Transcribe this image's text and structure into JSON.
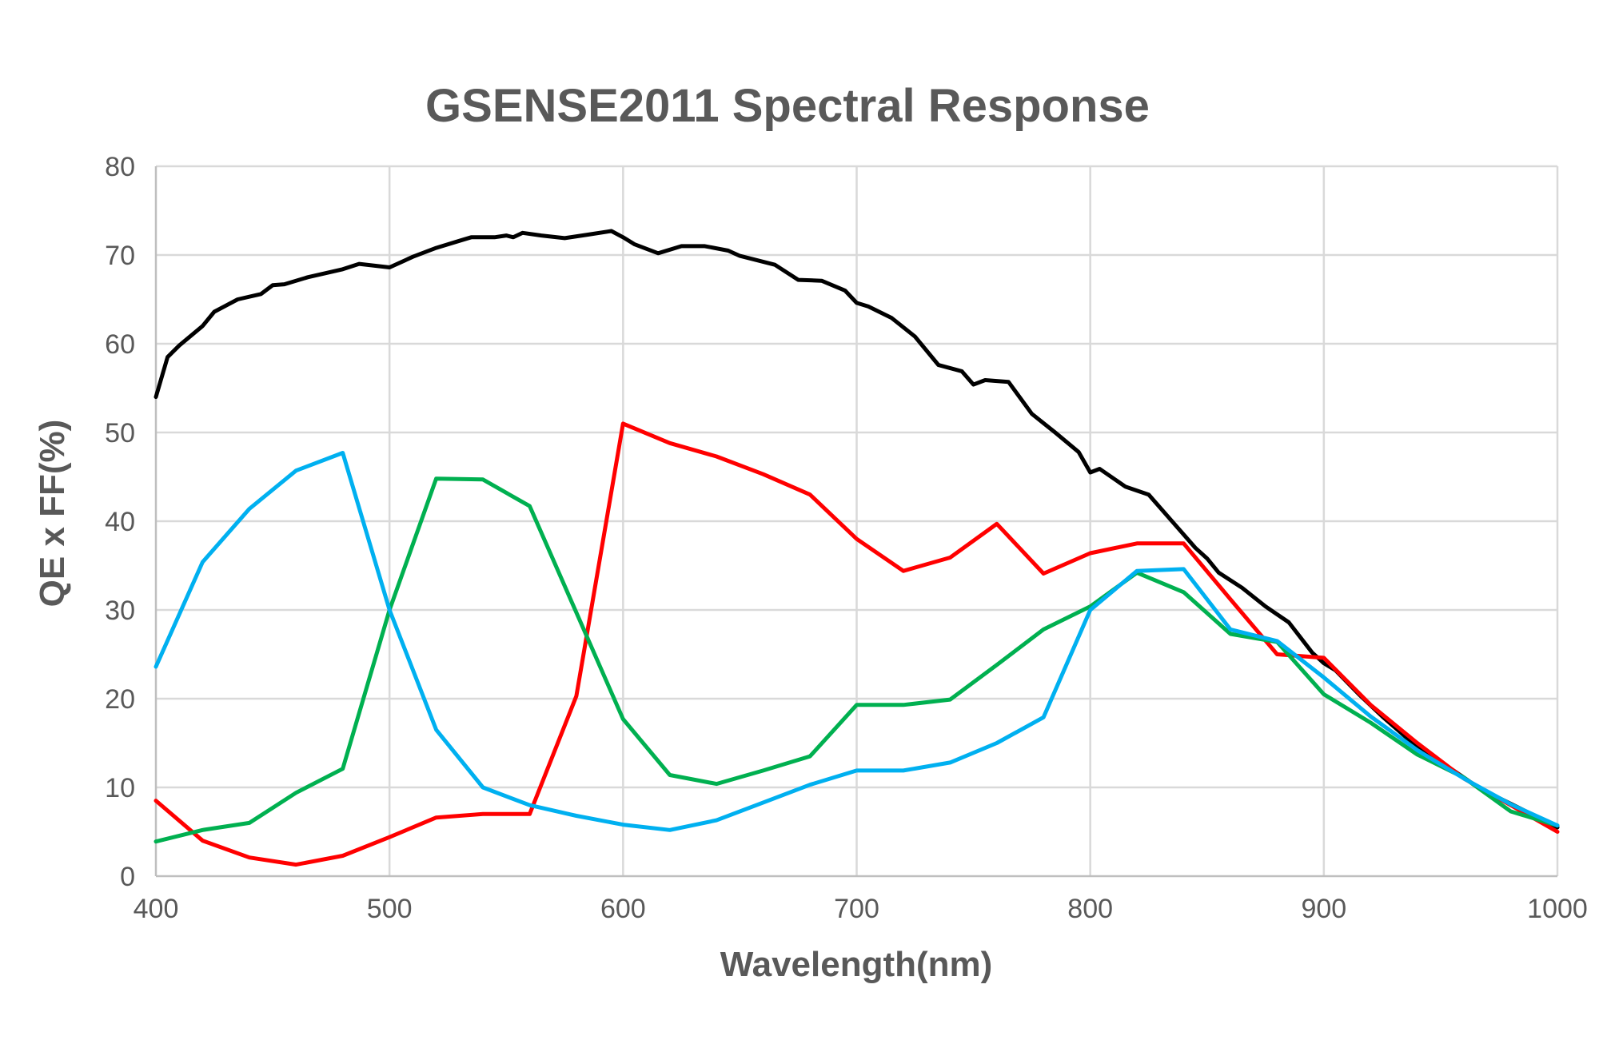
{
  "chart_data": {
    "type": "line",
    "title": "GSENSE2011 Spectral Response",
    "xlabel": "Wavelength(nm)",
    "ylabel": "QE x FF(%)",
    "xlim": [
      400,
      1000
    ],
    "ylim": [
      0,
      80
    ],
    "xticks": [
      400,
      500,
      600,
      700,
      800,
      900,
      1000
    ],
    "yticks": [
      0,
      10,
      20,
      30,
      40,
      50,
      60,
      70,
      80
    ],
    "grid": true,
    "series": [
      {
        "color": "#000000",
        "points": [
          [
            400,
            54
          ],
          [
            405,
            58.5
          ],
          [
            410,
            59.8
          ],
          [
            420,
            62
          ],
          [
            425,
            63.6
          ],
          [
            435,
            65
          ],
          [
            445,
            65.6
          ],
          [
            450,
            66.6
          ],
          [
            455,
            66.7
          ],
          [
            465,
            67.5
          ],
          [
            480,
            68.4
          ],
          [
            487,
            69
          ],
          [
            500,
            68.6
          ],
          [
            510,
            69.8
          ],
          [
            520,
            70.8
          ],
          [
            530,
            71.6
          ],
          [
            535,
            72
          ],
          [
            545,
            72
          ],
          [
            550,
            72.2
          ],
          [
            553,
            72
          ],
          [
            557,
            72.5
          ],
          [
            565,
            72.2
          ],
          [
            575,
            71.9
          ],
          [
            585,
            72.3
          ],
          [
            595,
            72.7
          ],
          [
            600,
            72
          ],
          [
            605,
            71.2
          ],
          [
            615,
            70.2
          ],
          [
            625,
            71
          ],
          [
            635,
            71
          ],
          [
            645,
            70.5
          ],
          [
            650,
            69.9
          ],
          [
            665,
            68.9
          ],
          [
            675,
            67.2
          ],
          [
            685,
            67.1
          ],
          [
            695,
            66
          ],
          [
            700,
            64.6
          ],
          [
            705,
            64.2
          ],
          [
            715,
            62.9
          ],
          [
            725,
            60.8
          ],
          [
            735,
            57.6
          ],
          [
            745,
            56.9
          ],
          [
            750,
            55.4
          ],
          [
            755,
            55.9
          ],
          [
            765,
            55.7
          ],
          [
            775,
            52.1
          ],
          [
            785,
            50
          ],
          [
            795,
            47.8
          ],
          [
            800,
            45.5
          ],
          [
            804,
            45.9
          ],
          [
            815,
            43.9
          ],
          [
            825,
            43
          ],
          [
            835,
            40
          ],
          [
            845,
            37
          ],
          [
            850,
            35.8
          ],
          [
            855,
            34.2
          ],
          [
            865,
            32.5
          ],
          [
            875,
            30.4
          ],
          [
            885,
            28.6
          ],
          [
            895,
            25.2
          ],
          [
            900,
            24
          ],
          [
            905,
            23.2
          ],
          [
            915,
            20.5
          ],
          [
            925,
            18
          ],
          [
            935,
            15.7
          ],
          [
            945,
            13.5
          ],
          [
            955,
            12
          ],
          [
            965,
            10.2
          ],
          [
            975,
            8.8
          ],
          [
            985,
            7.5
          ],
          [
            995,
            6.2
          ],
          [
            1000,
            5.5
          ]
        ]
      },
      {
        "color": "#ff0000",
        "points": [
          [
            400,
            8.5
          ],
          [
            420,
            4
          ],
          [
            440,
            2.1
          ],
          [
            460,
            1.3
          ],
          [
            480,
            2.3
          ],
          [
            500,
            4.4
          ],
          [
            520,
            6.6
          ],
          [
            540,
            7
          ],
          [
            560,
            7
          ],
          [
            580,
            20.3
          ],
          [
            600,
            51
          ],
          [
            620,
            48.8
          ],
          [
            640,
            47.3
          ],
          [
            660,
            45.3
          ],
          [
            680,
            43
          ],
          [
            700,
            38
          ],
          [
            720,
            34.4
          ],
          [
            740,
            35.9
          ],
          [
            760,
            39.7
          ],
          [
            780,
            34.1
          ],
          [
            800,
            36.4
          ],
          [
            820,
            37.5
          ],
          [
            840,
            37.5
          ],
          [
            860,
            31.2
          ],
          [
            880,
            25
          ],
          [
            900,
            24.6
          ],
          [
            920,
            19.3
          ],
          [
            940,
            15
          ],
          [
            960,
            11
          ],
          [
            980,
            8
          ],
          [
            1000,
            5
          ]
        ]
      },
      {
        "color": "#00b050",
        "points": [
          [
            400,
            3.9
          ],
          [
            420,
            5.2
          ],
          [
            440,
            6
          ],
          [
            460,
            9.4
          ],
          [
            480,
            12.1
          ],
          [
            500,
            30
          ],
          [
            520,
            44.8
          ],
          [
            540,
            44.7
          ],
          [
            560,
            41.7
          ],
          [
            580,
            29.7
          ],
          [
            600,
            17.7
          ],
          [
            620,
            11.4
          ],
          [
            640,
            10.4
          ],
          [
            660,
            11.9
          ],
          [
            680,
            13.5
          ],
          [
            700,
            19.3
          ],
          [
            720,
            19.3
          ],
          [
            740,
            19.9
          ],
          [
            760,
            23.8
          ],
          [
            780,
            27.8
          ],
          [
            800,
            30.4
          ],
          [
            820,
            34.2
          ],
          [
            840,
            32
          ],
          [
            860,
            27.3
          ],
          [
            880,
            26.4
          ],
          [
            900,
            20.5
          ],
          [
            920,
            17.3
          ],
          [
            940,
            13.7
          ],
          [
            960,
            11.1
          ],
          [
            980,
            7.3
          ],
          [
            1000,
            5.7
          ]
        ]
      },
      {
        "color": "#00b0f0",
        "points": [
          [
            400,
            23.6
          ],
          [
            420,
            35.4
          ],
          [
            440,
            41.4
          ],
          [
            460,
            45.7
          ],
          [
            480,
            47.7
          ],
          [
            500,
            30
          ],
          [
            520,
            16.5
          ],
          [
            540,
            10
          ],
          [
            560,
            8
          ],
          [
            580,
            6.8
          ],
          [
            600,
            5.8
          ],
          [
            620,
            5.2
          ],
          [
            640,
            6.3
          ],
          [
            660,
            8.3
          ],
          [
            680,
            10.3
          ],
          [
            700,
            11.9
          ],
          [
            720,
            11.9
          ],
          [
            740,
            12.8
          ],
          [
            760,
            15
          ],
          [
            780,
            17.9
          ],
          [
            800,
            30
          ],
          [
            820,
            34.4
          ],
          [
            840,
            34.6
          ],
          [
            860,
            27.8
          ],
          [
            880,
            26.5
          ],
          [
            900,
            22.4
          ],
          [
            920,
            18
          ],
          [
            940,
            14.2
          ],
          [
            960,
            11
          ],
          [
            980,
            8.1
          ],
          [
            1000,
            5.7
          ]
        ]
      }
    ]
  }
}
